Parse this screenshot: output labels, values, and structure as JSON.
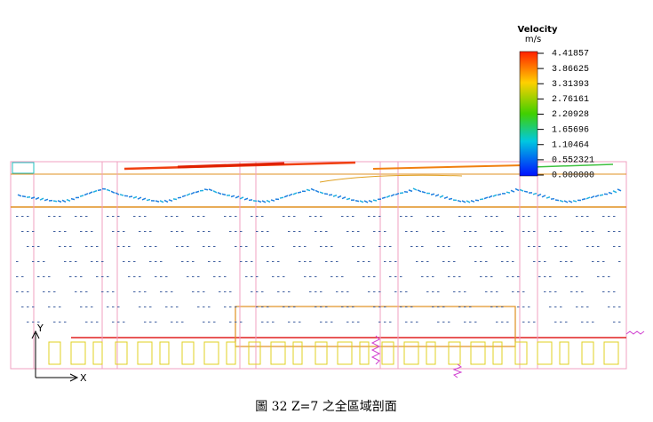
{
  "legend": {
    "title": "Velocity",
    "unit": "m/s",
    "labels": [
      "4.41857",
      "3.86625",
      "3.31393",
      "2.76161",
      "2.20928",
      "1.65696",
      "1.10464",
      "0.552321",
      "0.000000"
    ]
  },
  "axes": {
    "y": "Y",
    "x": "X"
  },
  "caption": "圖 32 Z=7 之全區域剖面"
}
